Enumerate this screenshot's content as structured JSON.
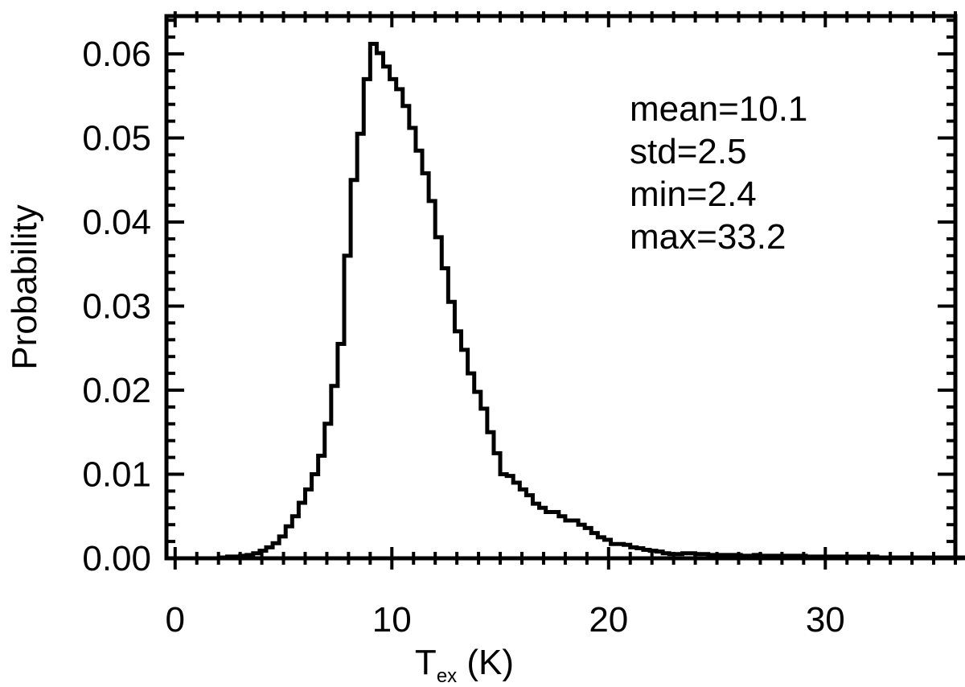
{
  "chart_data": {
    "type": "line",
    "step": true,
    "title": "",
    "xlabel_main": "T",
    "xlabel_sub": "ex",
    "xlabel_unit": " (K)",
    "ylabel": "Probability",
    "xlim": [
      -0.4,
      36
    ],
    "ylim": [
      0,
      0.0645
    ],
    "x_ticks": [
      0,
      10,
      20,
      30
    ],
    "x_tick_labels": [
      "0",
      "10",
      "20",
      "30"
    ],
    "y_ticks": [
      0,
      0.01,
      0.02,
      0.03,
      0.04,
      0.05,
      0.06
    ],
    "y_tick_labels": [
      "0.00",
      "0.01",
      "0.02",
      "0.03",
      "0.04",
      "0.05",
      "0.06"
    ],
    "annotations": [
      "mean=10.1",
      "std=2.5",
      "min=2.4",
      "max=33.2"
    ],
    "grid": false,
    "legend": "none",
    "line_color": "#000000",
    "bin_width": 0.3,
    "bin_start": 2.1,
    "values": [
      0.0001,
      0.0002,
      0.0002,
      0.0003,
      0.0004,
      0.0006,
      0.0009,
      0.0013,
      0.0018,
      0.0026,
      0.0038,
      0.005,
      0.0066,
      0.0082,
      0.01,
      0.0122,
      0.016,
      0.0205,
      0.0255,
      0.036,
      0.045,
      0.0505,
      0.057,
      0.0612,
      0.0601,
      0.0585,
      0.057,
      0.0558,
      0.0538,
      0.0512,
      0.0485,
      0.0458,
      0.0425,
      0.0382,
      0.0345,
      0.0305,
      0.027,
      0.0248,
      0.022,
      0.0198,
      0.0178,
      0.015,
      0.0125,
      0.01,
      0.0098,
      0.009,
      0.0082,
      0.0075,
      0.0065,
      0.006,
      0.0055,
      0.0055,
      0.005,
      0.0045,
      0.0045,
      0.004,
      0.0036,
      0.003,
      0.0025,
      0.0022,
      0.0017,
      0.0017,
      0.0016,
      0.0013,
      0.0012,
      0.001,
      0.0009,
      0.0008,
      0.0006,
      0.0005,
      0.0005,
      0.0006,
      0.0006,
      0.0005,
      0.0005,
      0.0004,
      0.0004,
      0.0004,
      0.0004,
      0.0004,
      0.0003,
      0.0003,
      0.0004,
      0.0003,
      0.0003,
      0.0003,
      0.0003,
      0.0003,
      0.0003,
      0.0003,
      0.0002,
      0.0002,
      0.0002,
      0.0002,
      0.0002,
      0.0002,
      0.0002,
      0.0002,
      0.0002,
      0.0002,
      0.0002,
      0.0001,
      0.0001,
      0.0001,
      0.0001,
      0.0001,
      0.0001,
      0.0001,
      0.0001,
      0.0001,
      0.0001,
      0.0001,
      0.0001,
      0.0001,
      0.0001,
      0.0001,
      0.0001,
      0.0001,
      0.0001,
      0.0001,
      0.0001,
      0.0001,
      0.0001,
      0.0001,
      0.0001,
      0.0001,
      0.0001,
      0.0001,
      0.0001,
      0.0001,
      0.0001,
      0.0001,
      0.0001,
      0.0001,
      0.0001,
      0.0001,
      0.0001
    ]
  }
}
